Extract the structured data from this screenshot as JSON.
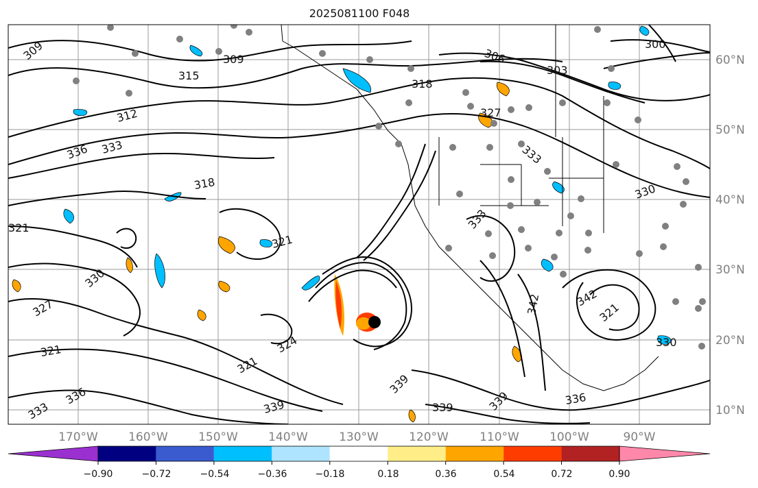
{
  "title": "2025081100 F048",
  "map": {
    "lon_range": [
      -180,
      -80
    ],
    "lat_range": [
      8,
      65
    ],
    "lon_ticks": [
      "170°W",
      "160°W",
      "150°W",
      "140°W",
      "130°W",
      "120°W",
      "110°W",
      "100°W",
      "90°W"
    ],
    "lat_ticks": [
      "60°N",
      "50°N",
      "40°N",
      "30°N",
      "20°N",
      "10°N"
    ],
    "gridlines": true,
    "contour_labels": [
      "309",
      "318",
      "306",
      "303",
      "327",
      "336",
      "333",
      "330",
      "321",
      "339",
      "342",
      "324",
      "312",
      "315",
      "300"
    ]
  },
  "colorbar": {
    "ticks": [
      "−0.90",
      "−0.72",
      "−0.54",
      "−0.36",
      "−0.18",
      "0.18",
      "0.36",
      "0.54",
      "0.72",
      "0.90"
    ],
    "colors": [
      "#9b30d0",
      "#000080",
      "#3a5bd0",
      "#00bfff",
      "#aee4ff",
      "#ffffff",
      "#ffee88",
      "#ffa500",
      "#ff3c00",
      "#b22222",
      "#ff88aa"
    ]
  }
}
